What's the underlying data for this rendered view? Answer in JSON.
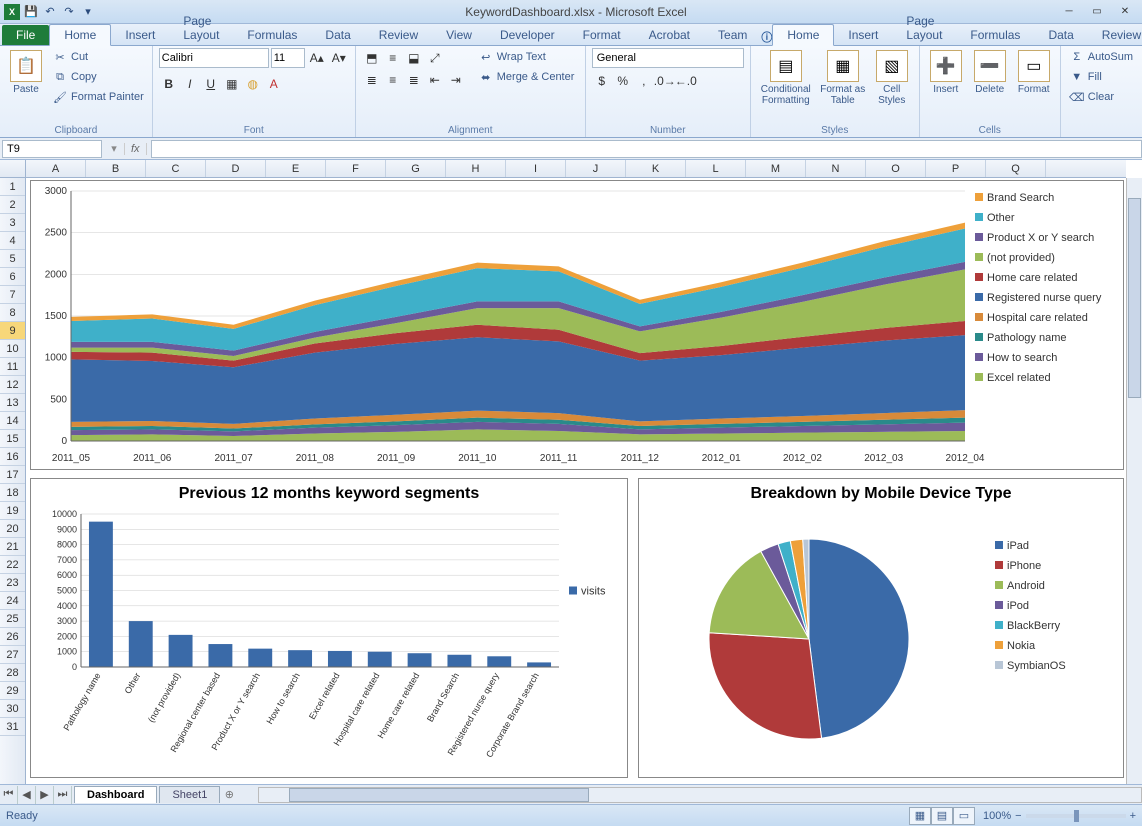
{
  "window": {
    "title": "KeywordDashboard.xlsx - Microsoft Excel"
  },
  "qat": {
    "save": "💾",
    "undo": "↶",
    "redo": "↷"
  },
  "tabs": {
    "file": "File",
    "list": [
      "Home",
      "Insert",
      "Page Layout",
      "Formulas",
      "Data",
      "Review",
      "View",
      "Developer",
      "Format",
      "Acrobat",
      "Team"
    ],
    "active": "Home"
  },
  "ribbon": {
    "clipboard": {
      "label": "Clipboard",
      "paste": "Paste",
      "cut": "Cut",
      "copy": "Copy",
      "format_painter": "Format Painter"
    },
    "font": {
      "label": "Font",
      "name": "Calibri",
      "size": "11",
      "bold": "B",
      "italic": "I",
      "underline": "U"
    },
    "alignment": {
      "label": "Alignment",
      "wrap": "Wrap Text",
      "merge": "Merge & Center"
    },
    "number": {
      "label": "Number",
      "format": "General"
    },
    "styles": {
      "label": "Styles",
      "conditional": "Conditional Formatting",
      "table": "Format as Table",
      "cell": "Cell Styles"
    },
    "cells": {
      "label": "Cells",
      "insert": "Insert",
      "delete": "Delete",
      "format": "Format"
    },
    "editing": {
      "label": "",
      "autosum": "AutoSum",
      "fill": "Fill",
      "clear": "Clear"
    }
  },
  "namebox": "T9",
  "columns": [
    "A",
    "B",
    "C",
    "D",
    "E",
    "F",
    "G",
    "H",
    "I",
    "J",
    "K",
    "L",
    "M",
    "N",
    "O",
    "P",
    "Q"
  ],
  "row_count": 31,
  "selected_row": 9,
  "area_chart": {
    "x_labels": [
      "2011_05",
      "2011_06",
      "2011_07",
      "2011_08",
      "2011_09",
      "2011_10",
      "2011_11",
      "2011_12",
      "2012_01",
      "2012_02",
      "2012_03",
      "2012_04"
    ],
    "y_max": 3000,
    "y_step": 500,
    "series": [
      {
        "name": "Excel related",
        "color": "#9cbb58",
        "values": [
          70,
          80,
          60,
          90,
          110,
          140,
          120,
          80,
          90,
          100,
          110,
          120
        ]
      },
      {
        "name": "How to search",
        "color": "#6b5a9a",
        "values": [
          60,
          60,
          55,
          70,
          80,
          90,
          85,
          60,
          70,
          80,
          90,
          100
        ]
      },
      {
        "name": "Pathology name",
        "color": "#2a8a8a",
        "values": [
          40,
          40,
          35,
          40,
          45,
          50,
          50,
          40,
          45,
          50,
          55,
          60
        ]
      },
      {
        "name": "Hospital care related",
        "color": "#d88a3a",
        "values": [
          60,
          60,
          55,
          70,
          80,
          85,
          80,
          55,
          65,
          70,
          80,
          90
        ]
      },
      {
        "name": "Registered nurse query",
        "color": "#3a6aa8",
        "values": [
          750,
          720,
          680,
          790,
          850,
          880,
          860,
          730,
          760,
          820,
          870,
          900
        ]
      },
      {
        "name": "Home care related",
        "color": "#b03a3a",
        "values": [
          90,
          100,
          80,
          110,
          130,
          150,
          140,
          90,
          110,
          130,
          150,
          170
        ]
      },
      {
        "name": "(not provided)",
        "color": "#9cbb58",
        "values": [
          50,
          60,
          55,
          70,
          120,
          200,
          260,
          260,
          340,
          420,
          520,
          620
        ]
      },
      {
        "name": "Product X or Y search",
        "color": "#6b5a9a",
        "values": [
          70,
          70,
          65,
          70,
          75,
          80,
          80,
          60,
          70,
          80,
          85,
          90
        ]
      },
      {
        "name": "Other",
        "color": "#3fb0c9",
        "values": [
          250,
          280,
          260,
          320,
          370,
          400,
          360,
          270,
          300,
          330,
          370,
          400
        ]
      },
      {
        "name": "Brand Search",
        "color": "#eea03a",
        "values": [
          50,
          50,
          50,
          55,
          60,
          65,
          60,
          50,
          55,
          60,
          65,
          70
        ]
      }
    ],
    "legend_order": [
      "Brand Search",
      "Other",
      "Product X or Y search",
      "(not provided)",
      "Home care related",
      "Registered nurse query",
      "Hospital care related",
      "Pathology name",
      "How to search",
      "Excel related"
    ]
  },
  "bar_chart": {
    "title": "Previous 12 months keyword segments",
    "y_max": 10000,
    "y_step": 1000,
    "legend": "visits",
    "color": "#3a6aa8",
    "categories": [
      "Pathology name",
      "Other",
      "(not provided)",
      "Regional center based",
      "Product X or Y search",
      "How to search",
      "Excel related",
      "Hospital care related",
      "Home care related",
      "Brand Search",
      "Registered nurse query",
      "Corporate Brand search"
    ],
    "values": [
      9500,
      3000,
      2100,
      1500,
      1200,
      1100,
      1050,
      1000,
      900,
      800,
      700,
      300
    ]
  },
  "pie_chart": {
    "title": "Breakdown by Mobile Device Type",
    "slices": [
      {
        "name": "iPad",
        "color": "#3a6aa8",
        "value": 48
      },
      {
        "name": "iPhone",
        "color": "#b03a3a",
        "value": 28
      },
      {
        "name": "Android",
        "color": "#9cbb58",
        "value": 16
      },
      {
        "name": "iPod",
        "color": "#6b5a9a",
        "value": 3
      },
      {
        "name": "BlackBerry",
        "color": "#3fb0c9",
        "value": 2
      },
      {
        "name": "Nokia",
        "color": "#eea03a",
        "value": 2
      },
      {
        "name": "SymbianOS",
        "color": "#b8c6d6",
        "value": 1
      }
    ]
  },
  "sheets": {
    "active": "Dashboard",
    "other": "Sheet1"
  },
  "status": {
    "ready": "Ready",
    "zoom": "100%"
  }
}
